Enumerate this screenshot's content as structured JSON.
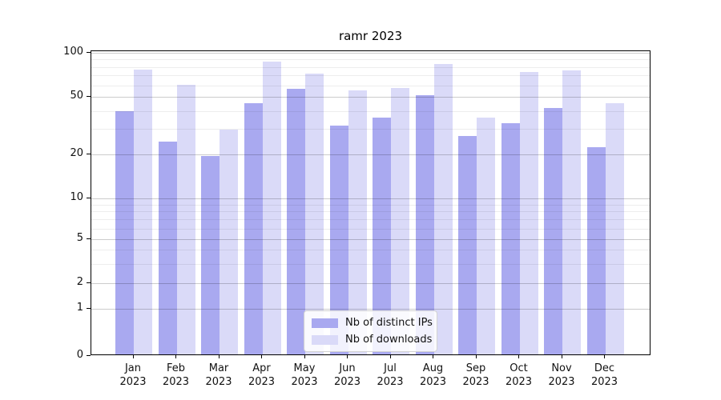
{
  "title": "ramr 2023",
  "colors": {
    "ips_bar": "#a9a9f0",
    "downloads_bar": "#dadaf8",
    "axis": "#000000",
    "text": "#111111",
    "background": "#ffffff"
  },
  "legend": {
    "items": [
      {
        "label": "Nb of distinct IPs",
        "color_key": "ips_bar"
      },
      {
        "label": "Nb of downloads",
        "color_key": "downloads_bar"
      }
    ]
  },
  "chart_data": {
    "type": "bar",
    "title": "ramr 2023",
    "categories": [
      "Jan 2023",
      "Feb 2023",
      "Mar 2023",
      "Apr 2023",
      "May 2023",
      "Jun 2023",
      "Jul 2023",
      "Aug 2023",
      "Sep 2023",
      "Oct 2023",
      "Nov 2023",
      "Dec 2023"
    ],
    "series": [
      {
        "name": "Nb of distinct IPs",
        "color": "#a9a9f0",
        "values": [
          39,
          24,
          19,
          44,
          55,
          31,
          35,
          50,
          26,
          32,
          41,
          22
        ]
      },
      {
        "name": "Nb of downloads",
        "color": "#dadaf8",
        "values": [
          75,
          59,
          29,
          85,
          70,
          54,
          56,
          82,
          35,
          72,
          74,
          44
        ]
      }
    ],
    "yscale": "symlog",
    "y_tick_labels": [
      "100",
      "50",
      "20",
      "10",
      "5",
      "2",
      "1",
      "0"
    ],
    "ylim": [
      0,
      100
    ],
    "xlabel": "",
    "ylabel": "",
    "grid": true,
    "legend_position": "lower center"
  }
}
